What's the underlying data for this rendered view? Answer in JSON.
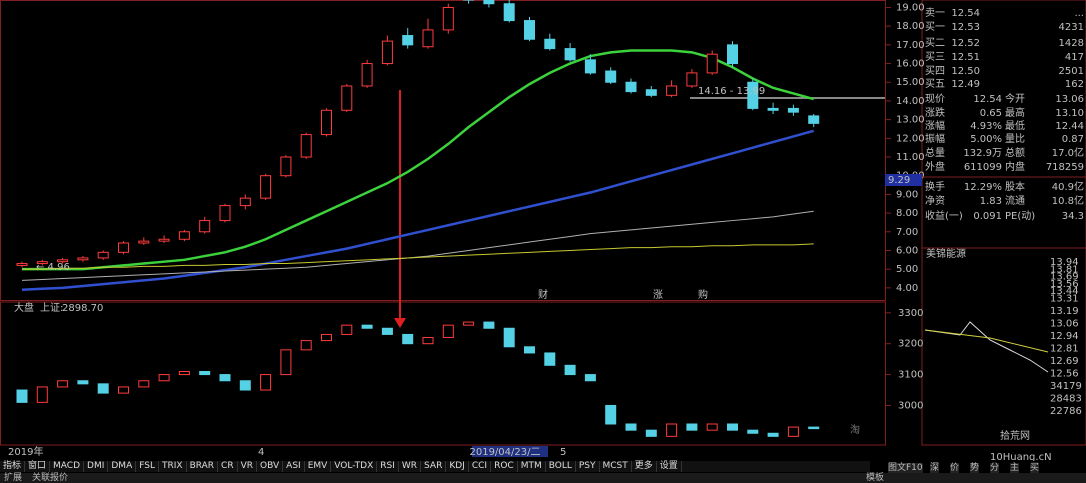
{
  "price_chart": {
    "type": "candlestick",
    "up_color": "#ff3c3c",
    "down_color": "#54d1e4",
    "open": [
      5.2,
      5.3,
      5.4,
      5.5,
      5.6,
      5.9,
      6.4,
      6.5,
      6.6,
      7.0,
      7.6,
      8.4,
      8.8,
      10.0,
      11.0,
      12.2,
      13.5,
      14.8,
      16.0,
      17.5,
      16.9,
      17.8,
      19.5,
      19.6,
      19.2,
      18.3,
      17.3,
      16.8,
      16.2,
      15.6,
      15.0,
      14.6,
      14.3,
      14.8,
      15.5,
      17.0,
      15.0,
      13.6,
      13.6,
      13.2
    ],
    "high": [
      5.4,
      5.5,
      5.6,
      5.7,
      6.0,
      6.5,
      6.7,
      6.8,
      7.1,
      7.8,
      8.5,
      9.0,
      10.1,
      11.1,
      12.3,
      13.6,
      14.9,
      16.2,
      17.5,
      17.9,
      18.4,
      19.2,
      19.9,
      19.8,
      19.4,
      18.5,
      17.6,
      17.1,
      16.5,
      15.8,
      15.2,
      14.8,
      15.1,
      15.7,
      16.7,
      17.2,
      15.2,
      13.9,
      13.8,
      13.3
    ],
    "low": [
      5.1,
      5.2,
      5.3,
      5.4,
      5.5,
      5.8,
      6.3,
      6.4,
      6.5,
      6.9,
      7.5,
      8.2,
      8.7,
      9.9,
      10.9,
      12.1,
      13.4,
      14.7,
      15.9,
      16.8,
      16.8,
      17.6,
      19.2,
      19.0,
      18.2,
      17.2,
      16.7,
      16.1,
      15.4,
      14.9,
      14.4,
      14.2,
      14.2,
      14.7,
      15.4,
      15.8,
      13.5,
      13.3,
      13.2,
      12.6
    ],
    "close": [
      5.3,
      5.4,
      5.5,
      5.6,
      5.9,
      6.4,
      6.5,
      6.6,
      7.0,
      7.6,
      8.4,
      8.8,
      10.0,
      11.0,
      12.2,
      13.5,
      14.8,
      16.0,
      17.2,
      17.0,
      17.8,
      19.0,
      19.4,
      19.2,
      18.3,
      17.3,
      16.8,
      16.2,
      15.5,
      15.0,
      14.5,
      14.3,
      14.8,
      15.5,
      16.5,
      16.0,
      13.6,
      13.5,
      13.4,
      12.8
    ],
    "ma_series": [
      {
        "color": "#3cd23c",
        "values": [
          5.0,
          5.0,
          5.0,
          5.0,
          5.1,
          5.2,
          5.3,
          5.4,
          5.5,
          5.7,
          5.9,
          6.2,
          6.6,
          7.1,
          7.6,
          8.1,
          8.6,
          9.1,
          9.6,
          10.2,
          10.9,
          11.7,
          12.6,
          13.4,
          14.2,
          14.9,
          15.5,
          16.0,
          16.4,
          16.6,
          16.7,
          16.7,
          16.7,
          16.6,
          16.3,
          15.8,
          15.2,
          14.7,
          14.4,
          14.1
        ]
      },
      {
        "color": "#3050d0",
        "values": [
          3.9,
          3.95,
          4.0,
          4.1,
          4.2,
          4.3,
          4.4,
          4.5,
          4.65,
          4.8,
          4.95,
          5.1,
          5.3,
          5.5,
          5.7,
          5.9,
          6.1,
          6.35,
          6.6,
          6.85,
          7.1,
          7.35,
          7.6,
          7.85,
          8.1,
          8.35,
          8.6,
          8.85,
          9.1,
          9.4,
          9.7,
          10.0,
          10.3,
          10.6,
          10.9,
          11.2,
          11.5,
          11.8,
          12.1,
          12.4
        ]
      },
      {
        "color": "#b0b0b0",
        "values": [
          4.4,
          4.45,
          4.5,
          4.55,
          4.6,
          4.65,
          4.7,
          4.75,
          4.8,
          4.85,
          4.9,
          4.95,
          5.0,
          5.05,
          5.1,
          5.2,
          5.3,
          5.4,
          5.5,
          5.6,
          5.7,
          5.85,
          6.0,
          6.15,
          6.3,
          6.45,
          6.6,
          6.75,
          6.9,
          7.0,
          7.1,
          7.2,
          7.3,
          7.4,
          7.5,
          7.6,
          7.7,
          7.8,
          7.95,
          8.1
        ]
      },
      {
        "color": "#c8c832",
        "values": [
          5.0,
          5.0,
          5.05,
          5.05,
          5.1,
          5.1,
          5.15,
          5.15,
          5.2,
          5.2,
          5.25,
          5.25,
          5.3,
          5.3,
          5.35,
          5.4,
          5.45,
          5.5,
          5.55,
          5.6,
          5.65,
          5.7,
          5.75,
          5.8,
          5.85,
          5.9,
          5.95,
          6.0,
          6.05,
          6.1,
          6.15,
          6.15,
          6.2,
          6.2,
          6.25,
          6.25,
          6.3,
          6.3,
          6.3,
          6.35
        ]
      }
    ],
    "ylim": [
      3.35,
      19.4
    ],
    "yticks": [
      {
        "value": 4,
        "label": "4.00"
      },
      {
        "value": 5,
        "label": "5.00"
      },
      {
        "value": 6,
        "label": "6.00"
      },
      {
        "value": 7,
        "label": "7.00"
      },
      {
        "value": 8,
        "label": "8.00"
      },
      {
        "value": 9,
        "label": "9.00"
      },
      {
        "value": 10,
        "label": "10.00"
      },
      {
        "value": 11,
        "label": "11.00"
      },
      {
        "value": 12,
        "label": "12.00"
      },
      {
        "value": 13,
        "label": "13.00"
      },
      {
        "value": 14,
        "label": "14.00"
      },
      {
        "value": 15,
        "label": "15.00"
      },
      {
        "value": 16,
        "label": "16.00"
      },
      {
        "value": 17,
        "label": "17.00"
      },
      {
        "value": 18,
        "label": "18.00"
      },
      {
        "value": 19,
        "label": "19.00"
      }
    ],
    "crosshair_label": "9.29",
    "annotations": [
      "14.16 - 13.99",
      "← 4.96"
    ],
    "markers": [
      "财",
      "涨",
      "购"
    ],
    "x_labels": [
      "2019年",
      "4",
      "2019/04/23/二",
      "5"
    ]
  },
  "index_chart": {
    "type": "candlestick",
    "label": "大盘",
    "name": "上证:",
    "value": "2898.70",
    "open": [
      3050,
      3010,
      3060,
      3080,
      3070,
      3040,
      3060,
      3080,
      3100,
      3110,
      3100,
      3080,
      3050,
      3100,
      3180,
      3210,
      3230,
      3260,
      3250,
      3230,
      3200,
      3220,
      3260,
      3270,
      3250,
      3190,
      3170,
      3130,
      3100,
      3000,
      2940,
      2920,
      2900,
      2940,
      2920,
      2940,
      2920,
      2910,
      2900,
      2930
    ],
    "close": [
      3010,
      3060,
      3080,
      3070,
      3040,
      3060,
      3080,
      3100,
      3110,
      3100,
      3080,
      3050,
      3100,
      3180,
      3210,
      3230,
      3260,
      3250,
      3230,
      3200,
      3220,
      3260,
      3270,
      3250,
      3190,
      3170,
      3130,
      3100,
      3080,
      2940,
      2920,
      2900,
      2940,
      2920,
      2940,
      2920,
      2910,
      2900,
      2930,
      2925
    ],
    "ylim": [
      2872,
      3335
    ],
    "yticks": [
      3000,
      3100,
      3200,
      3300
    ]
  },
  "quote": {
    "order_book": [
      [
        "卖一",
        "12.54",
        "..."
      ],
      [
        "买一",
        "12.53",
        "4231"
      ],
      [
        "买二",
        "12.52",
        "1428"
      ],
      [
        "买三",
        "12.51",
        "417"
      ],
      [
        "买四",
        "12.50",
        "2501"
      ],
      [
        "买五",
        "12.49",
        "162"
      ]
    ],
    "stats": [
      [
        "现价",
        "12.54",
        "今开",
        "13.06"
      ],
      [
        "涨跌",
        "0.65",
        "最高",
        "13.10"
      ],
      [
        "涨幅",
        "4.93%",
        "最低",
        "12.44"
      ],
      [
        "振幅",
        "5.00%",
        "量比",
        "0.87"
      ],
      [
        "总量",
        "132.9万",
        "总额",
        "17.0亿"
      ],
      [
        "外盘",
        "611099",
        "内盘",
        "718259"
      ],
      [
        "换手",
        "12.29%",
        "股本",
        "40.9亿"
      ],
      [
        "净资",
        "1.83",
        "流通",
        "10.8亿"
      ],
      [
        "收益(一)",
        "0.091",
        "PE(动)",
        "34.3"
      ]
    ]
  },
  "mini_chart": {
    "title": "美锦能源",
    "ticks_top": [
      "13.94",
      "13.81",
      "13.69",
      "13.56",
      "13.44",
      "13.31"
    ],
    "ticks_bottom": [
      "13.19",
      "13.06",
      "12.94",
      "12.81",
      "12.69",
      "12.56",
      "34179",
      "28483",
      "22786"
    ]
  },
  "tabs": [
    "指标",
    "窗口",
    "MACD",
    "DMI",
    "DMA",
    "FSL",
    "TRIX",
    "BRAR",
    "CR",
    "VR",
    "OBV",
    "ASI",
    "EMV",
    "VOL-TDX",
    "RSI",
    "WR",
    "SAR",
    "KDJ",
    "CCI",
    "ROC",
    "MTM",
    "BOLL",
    "PSY",
    "MCST",
    "更多",
    "设置"
  ],
  "bottom_bar": [
    "扩展",
    "关联报价",
    "模板",
    "图文F10",
    "深",
    "价",
    "势",
    "分",
    "主",
    "买"
  ],
  "watermark": [
    "淘",
    "拾荒网",
    "10Huang.cN"
  ]
}
